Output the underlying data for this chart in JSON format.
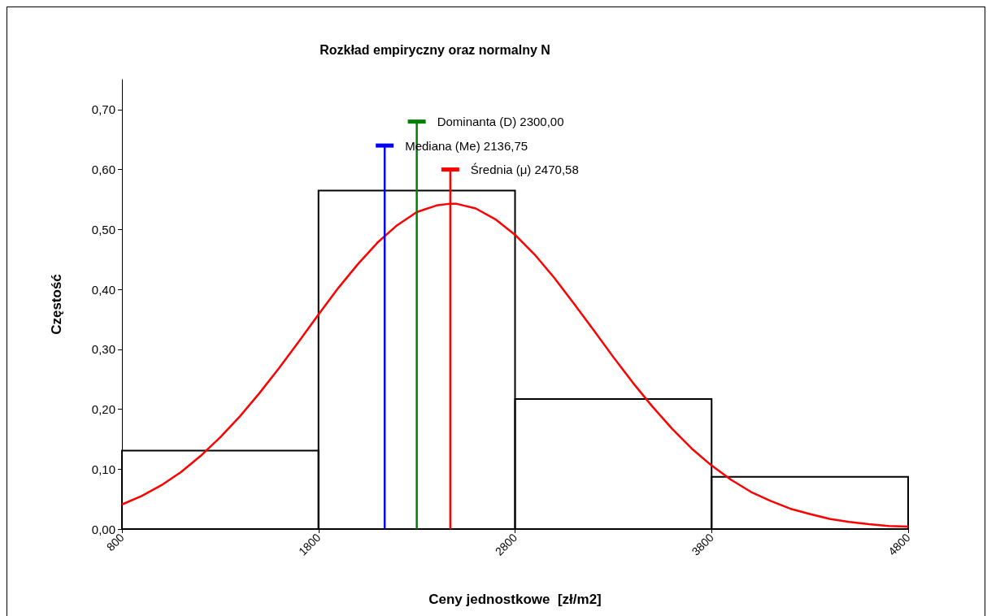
{
  "chart_data": {
    "type": "histogram",
    "title": "Rozkład empiryczny oraz normalny N",
    "xlabel": "Ceny jednostkowe  [zł/m2]",
    "ylabel": "Częstość",
    "bins": [
      800,
      1800,
      2800,
      3800,
      4800
    ],
    "values": [
      0.131,
      0.565,
      0.217,
      0.087
    ],
    "color": "#000000",
    "series": [
      {
        "type": "line",
        "color": "#ff0000",
        "x": [
          800,
          900,
          1000,
          1100,
          1200,
          1300,
          1400,
          1500,
          1600,
          1700,
          1800,
          1900,
          2000,
          2100,
          2200,
          2300,
          2400,
          2470.58,
          2500,
          2600,
          2700,
          2800,
          2900,
          3000,
          3100,
          3200,
          3300,
          3400,
          3500,
          3600,
          3700,
          3800,
          3900,
          4000,
          4100,
          4200,
          4300,
          4400,
          4500,
          4600,
          4700,
          4800
        ],
        "values": [
          0.041,
          0.055,
          0.073,
          0.095,
          0.122,
          0.153,
          0.188,
          0.227,
          0.269,
          0.313,
          0.358,
          0.402,
          0.442,
          0.478,
          0.507,
          0.529,
          0.54,
          0.543,
          0.543,
          0.535,
          0.517,
          0.491,
          0.458,
          0.419,
          0.376,
          0.332,
          0.287,
          0.244,
          0.204,
          0.167,
          0.134,
          0.106,
          0.082,
          0.062,
          0.047,
          0.034,
          0.025,
          0.017,
          0.012,
          0.008,
          0.005,
          0.004
        ]
      },
      {
        "type": "line",
        "name": "Dominanta (D) 2300,00",
        "color": "#008000",
        "x": [
          2300,
          2300
        ],
        "values": [
          0,
          0.68
        ]
      },
      {
        "type": "line",
        "name": "Mediana (Me) 2136,75",
        "color": "#0000ff",
        "x": [
          2136.75,
          2136.75
        ],
        "values": [
          0,
          0.64
        ]
      },
      {
        "type": "line",
        "name": "Średnia (μ) 2470,58",
        "color": "#ff0000",
        "x": [
          2470.58,
          2470.58
        ],
        "values": [
          0,
          0.6
        ]
      }
    ],
    "xlim": [
      800,
      4800
    ],
    "xticks": [
      800,
      1800,
      2800,
      3800,
      4800
    ],
    "ylim": [
      0,
      0.75
    ],
    "yticks": [
      {
        "value": 0,
        "label": "0,00"
      },
      {
        "value": 0.1,
        "label": "0,10"
      },
      {
        "value": 0.2,
        "label": "0,20"
      },
      {
        "value": 0.3,
        "label": "0,30"
      },
      {
        "value": 0.4,
        "label": "0,40"
      },
      {
        "value": 0.5,
        "label": "0,50"
      },
      {
        "value": 0.6,
        "label": "0,60"
      },
      {
        "value": 0.7,
        "label": "0,70"
      }
    ],
    "grid": false,
    "legend": "top"
  }
}
